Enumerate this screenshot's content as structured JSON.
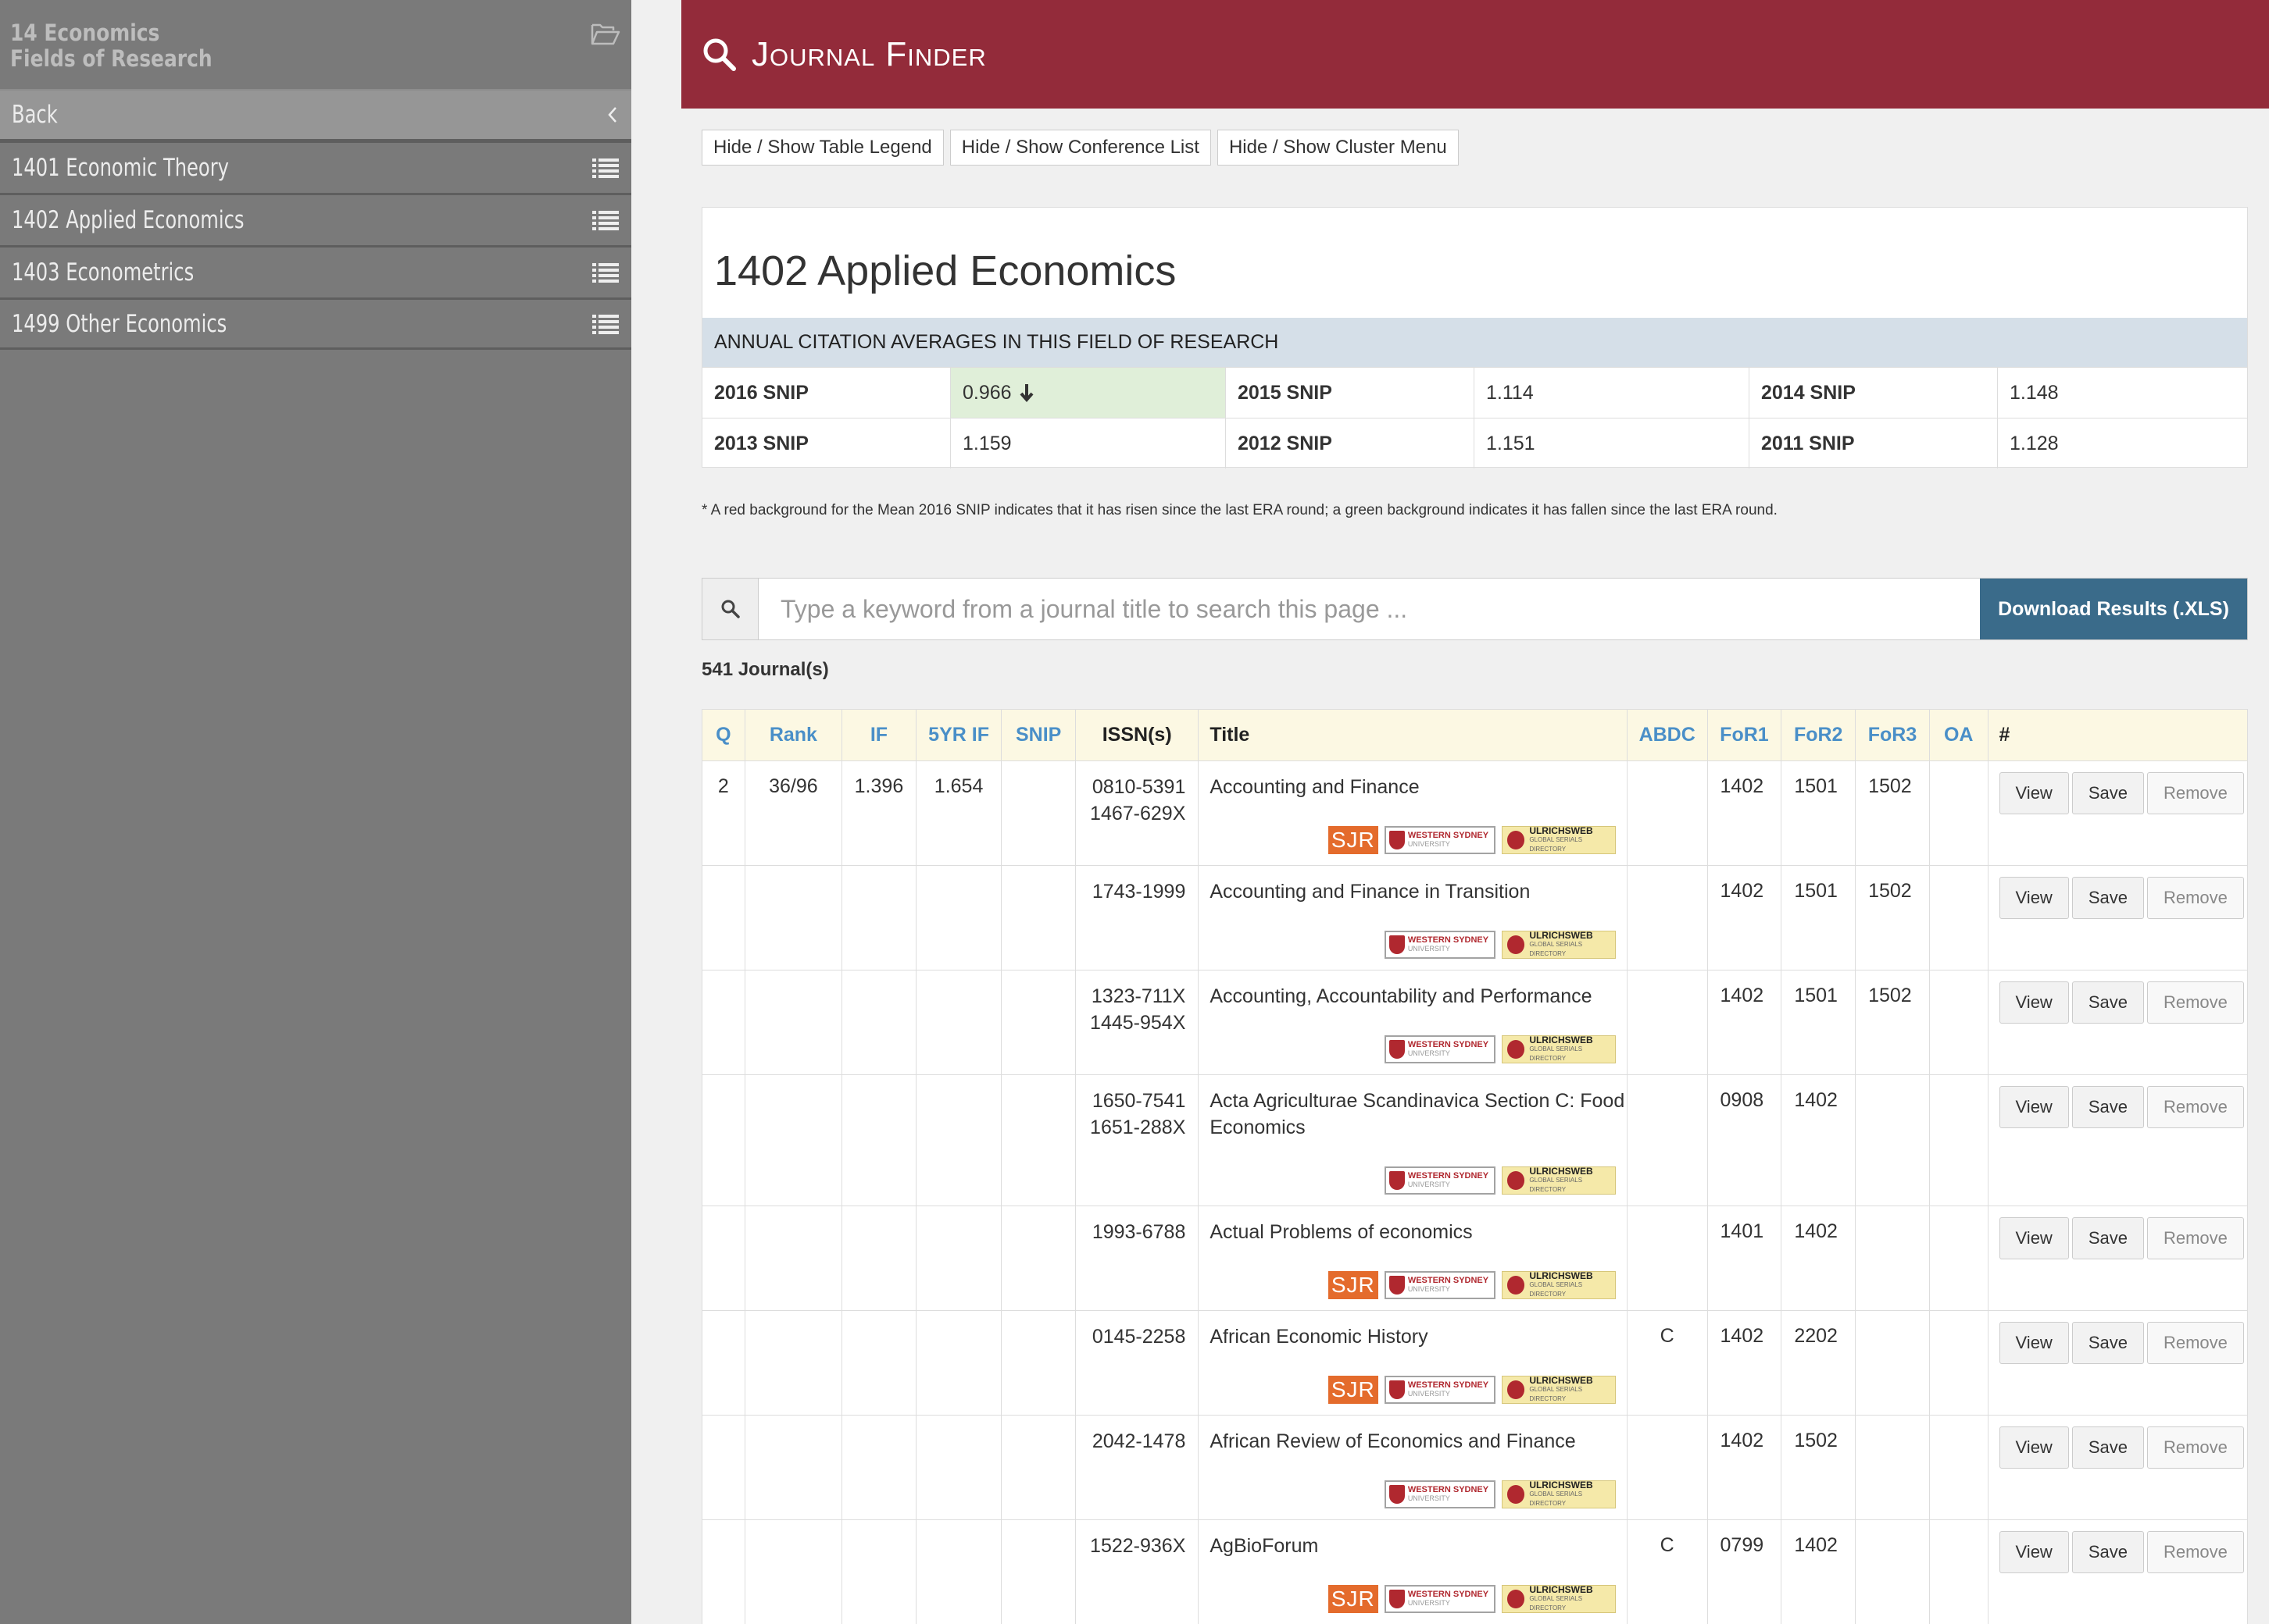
{
  "sidebar": {
    "title_line1": "14 Economics",
    "title_line2": "Fields of Research",
    "back_label": "Back",
    "items": [
      {
        "label": "1401 Economic Theory"
      },
      {
        "label": "1402 Applied Economics"
      },
      {
        "label": "1403 Econometrics"
      },
      {
        "label": "1499 Other Economics"
      }
    ]
  },
  "header": {
    "title": "Journal Finder"
  },
  "toolbar": {
    "legend_btn": "Hide / Show Table Legend",
    "conference_btn": "Hide / Show Conference List",
    "cluster_btn": "Hide / Show Cluster Menu"
  },
  "field": {
    "title": "1402 Applied Economics",
    "citation_heading": "ANNUAL CITATION AVERAGES IN THIS FIELD OF RESEARCH",
    "snips": [
      {
        "label": "2016 SNIP",
        "value": "0.966"
      },
      {
        "label": "2015 SNIP",
        "value": "1.114"
      },
      {
        "label": "2014 SNIP",
        "value": "1.148"
      },
      {
        "label": "2013 SNIP",
        "value": "1.159"
      },
      {
        "label": "2012 SNIP",
        "value": "1.151"
      },
      {
        "label": "2011 SNIP",
        "value": "1.128"
      }
    ],
    "note": "* A red background for the Mean 2016 SNIP indicates that it has risen since the last ERA round; a green background indicates it has fallen since the last ERA round."
  },
  "search": {
    "placeholder": "Type a keyword from a journal title to search this page ...",
    "download_label": "Download Results (.XLS)"
  },
  "count": "541 Journal(s)",
  "table": {
    "headers": [
      "Q",
      "Rank",
      "IF",
      "5YR IF",
      "SNIP",
      "ISSN(s)",
      "Title",
      "ABDC",
      "FoR1",
      "FoR2",
      "FoR3",
      "OA",
      "#"
    ],
    "badges": {
      "sjr": "SJR",
      "wsu_line1": "WESTERN SYDNEY",
      "wsu_line2": "UNIVERSITY",
      "ulr_line1": "ULRICHSWEB",
      "ulr_line2": "GLOBAL SERIALS DIRECTORY"
    },
    "actions": {
      "view": "View",
      "save": "Save",
      "remove": "Remove"
    },
    "rows": [
      {
        "q": "2",
        "rank": "36/96",
        "if": "1.396",
        "if5": "1.654",
        "snip": "",
        "issn1": "0810-5391",
        "issn2": "1467-629X",
        "title": "Accounting and Finance",
        "abdc": "",
        "for1": "1402",
        "for2": "1501",
        "for3": "1502",
        "oa": ""
      },
      {
        "q": "",
        "rank": "",
        "if": "",
        "if5": "",
        "snip": "",
        "issn1": "1743-1999",
        "issn2": "",
        "title": "Accounting and Finance in Transition",
        "abdc": "",
        "for1": "1402",
        "for2": "1501",
        "for3": "1502",
        "oa": ""
      },
      {
        "q": "",
        "rank": "",
        "if": "",
        "if5": "",
        "snip": "",
        "issn1": "1323-711X",
        "issn2": "1445-954X",
        "title": "Accounting, Accountability and Performance",
        "abdc": "",
        "for1": "1402",
        "for2": "1501",
        "for3": "1502",
        "oa": ""
      },
      {
        "q": "",
        "rank": "",
        "if": "",
        "if5": "",
        "snip": "",
        "issn1": "1650-7541",
        "issn2": "1651-288X",
        "title": "Acta Agriculturae Scandinavica Section C: Food Economics",
        "abdc": "",
        "for1": "0908",
        "for2": "1402",
        "for3": "",
        "oa": ""
      },
      {
        "q": "",
        "rank": "",
        "if": "",
        "if5": "",
        "snip": "",
        "issn1": "1993-6788",
        "issn2": "",
        "title": "Actual Problems of economics",
        "abdc": "",
        "for1": "1401",
        "for2": "1402",
        "for3": "",
        "oa": ""
      },
      {
        "q": "",
        "rank": "",
        "if": "",
        "if5": "",
        "snip": "",
        "issn1": "0145-2258",
        "issn2": "",
        "title": "African Economic History",
        "abdc": "C",
        "for1": "1402",
        "for2": "2202",
        "for3": "",
        "oa": ""
      },
      {
        "q": "",
        "rank": "",
        "if": "",
        "if5": "",
        "snip": "",
        "issn1": "2042-1478",
        "issn2": "",
        "title": "African Review of Economics and Finance",
        "abdc": "",
        "for1": "1402",
        "for2": "1502",
        "for3": "",
        "oa": ""
      },
      {
        "q": "",
        "rank": "",
        "if": "",
        "if5": "",
        "snip": "",
        "issn1": "1522-936X",
        "issn2": "",
        "title": "AgBioForum",
        "abdc": "C",
        "for1": "0799",
        "for2": "1402",
        "for3": "",
        "oa": ""
      }
    ]
  }
}
